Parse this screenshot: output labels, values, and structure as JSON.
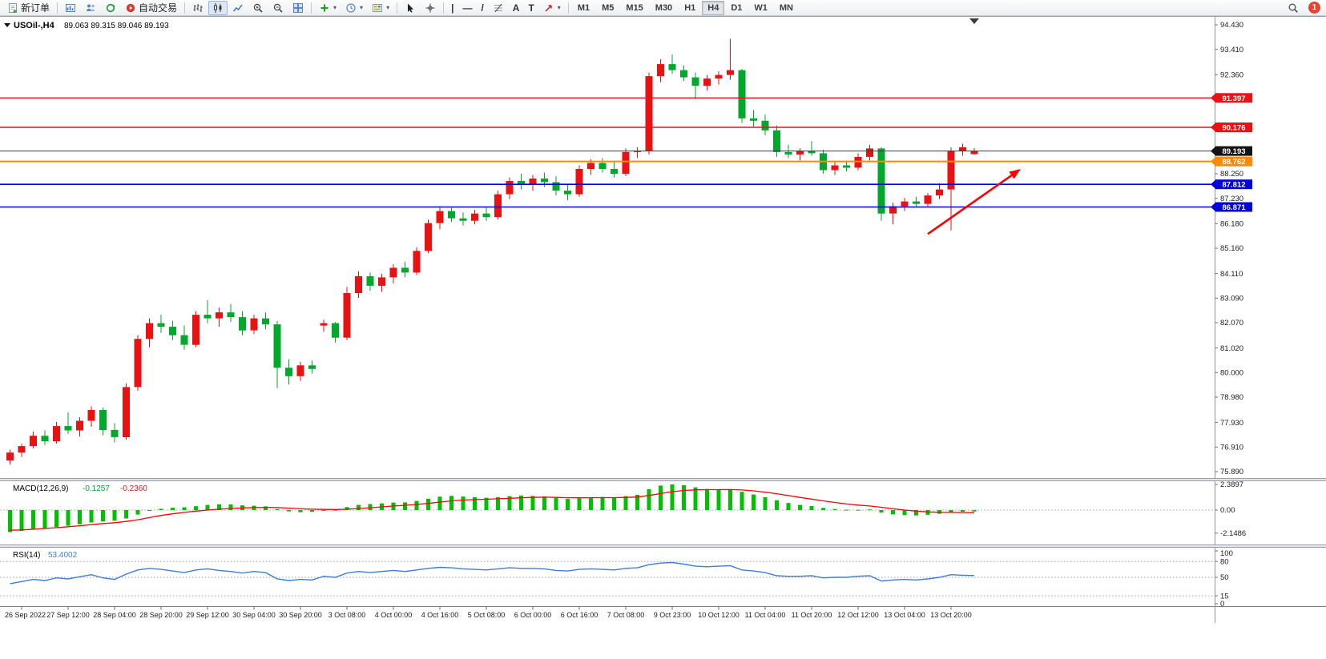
{
  "toolbar": {
    "new_order_label": "新订单",
    "autotrading_label": "自动交易",
    "timeframes": [
      "M1",
      "M5",
      "M15",
      "M30",
      "H1",
      "H4",
      "D1",
      "W1",
      "MN"
    ],
    "active_timeframe": "H4",
    "notification_count": "1",
    "glyphs": {
      "vline": "|",
      "hline": "—",
      "trendline": "/",
      "text": "A",
      "label": "T",
      "caret": "▾"
    }
  },
  "chart": {
    "title": "USOil-,H4",
    "ohlc_text": "89.063 89.315 89.046 89.193"
  },
  "indicators": {
    "macd": {
      "label": "MACD(12,26,9)",
      "value_main": "-0.1257",
      "value_signal": "-0.2360"
    },
    "rsi": {
      "label": "RSI(14)",
      "value": "53.4002"
    }
  },
  "chart_data": {
    "type": "candlestick",
    "symbol": "USOil-",
    "timeframe": "H4",
    "ylim": [
      75.89,
      94.43
    ],
    "current_ohlc": {
      "open": 89.063,
      "high": 89.315,
      "low": 89.046,
      "close": 89.193
    },
    "colors": {
      "up": "#e81212",
      "down": "#00a82c",
      "macd_bar": "#00c000",
      "macd_signal": "#ff0000",
      "rsi_line": "#3d7edb",
      "arrow": "#ff0000"
    },
    "price_axis": {
      "ticks": [
        "94.430",
        "93.410",
        "92.360",
        "88.250",
        "87.230",
        "86.180",
        "85.160",
        "84.110",
        "83.090",
        "82.070",
        "81.020",
        "80.000",
        "78.980",
        "77.930",
        "76.910",
        "75.890"
      ],
      "badges": [
        {
          "label": "91.397",
          "price": 91.397,
          "color": "#ee1111",
          "line_color": "#ee1111",
          "line_width": 1.4
        },
        {
          "label": "90.176",
          "price": 90.176,
          "color": "#ee1111",
          "line_color": "#ee1111",
          "line_width": 1.4
        },
        {
          "label": "89.193",
          "price": 89.193,
          "color": "#141414",
          "line_color": "#3c3c3c",
          "line_width": 1
        },
        {
          "label": "88.762",
          "price": 88.762,
          "color": "#ff8a00",
          "line_color": "#ff8a00",
          "line_width": 2
        },
        {
          "label": "87.812",
          "price": 87.812,
          "color": "#0000dc",
          "line_color": "#0000dc",
          "line_width": 1.6
        },
        {
          "label": "86.871",
          "price": 86.871,
          "color": "#0000dc",
          "line_color": "#0000dc",
          "line_width": 1.6
        }
      ]
    },
    "time_labels": [
      "26 Sep 2022",
      "27 Sep 12:00",
      "28 Sep 04:00",
      "28 Sep 20:00",
      "29 Sep 12:00",
      "30 Sep 04:00",
      "30 Sep 20:00",
      "3 Oct 08:00",
      "4 Oct 00:00",
      "4 Oct 16:00",
      "5 Oct 08:00",
      "6 Oct 00:00",
      "6 Oct 16:00",
      "7 Oct 08:00",
      "9 Oct 23:00",
      "10 Oct 12:00",
      "11 Oct 04:00",
      "11 Oct 20:00",
      "12 Oct 12:00",
      "13 Oct 04:00",
      "13 Oct 20:00"
    ],
    "candles": [
      [
        76.35,
        76.8,
        76.18,
        76.68
      ],
      [
        76.68,
        77.05,
        76.5,
        76.95
      ],
      [
        76.95,
        77.55,
        76.85,
        77.38
      ],
      [
        77.38,
        77.6,
        77.0,
        77.15
      ],
      [
        77.15,
        77.95,
        77.05,
        77.78
      ],
      [
        77.78,
        78.35,
        77.45,
        77.6
      ],
      [
        77.6,
        78.15,
        77.35,
        78.0
      ],
      [
        78.0,
        78.6,
        77.75,
        78.45
      ],
      [
        78.45,
        78.55,
        77.4,
        77.62
      ],
      [
        77.62,
        77.9,
        77.1,
        77.32
      ],
      [
        77.32,
        79.55,
        77.22,
        79.4
      ],
      [
        79.4,
        81.55,
        79.25,
        81.4
      ],
      [
        81.4,
        82.25,
        81.05,
        82.05
      ],
      [
        82.05,
        82.4,
        81.65,
        81.9
      ],
      [
        81.9,
        82.15,
        81.35,
        81.55
      ],
      [
        81.55,
        81.95,
        80.95,
        81.15
      ],
      [
        81.15,
        82.55,
        81.05,
        82.4
      ],
      [
        82.4,
        83.0,
        82.05,
        82.25
      ],
      [
        82.25,
        82.7,
        81.9,
        82.5
      ],
      [
        82.5,
        82.85,
        82.1,
        82.3
      ],
      [
        82.3,
        82.55,
        81.55,
        81.75
      ],
      [
        81.75,
        82.4,
        81.6,
        82.25
      ],
      [
        82.25,
        82.5,
        81.8,
        82.0
      ],
      [
        82.0,
        82.15,
        79.35,
        80.2
      ],
      [
        80.2,
        80.55,
        79.5,
        79.85
      ],
      [
        79.85,
        80.45,
        79.65,
        80.3
      ],
      [
        80.3,
        80.5,
        79.95,
        80.15
      ],
      [
        81.95,
        82.2,
        81.7,
        82.05
      ],
      [
        82.05,
        82.1,
        81.25,
        81.45
      ],
      [
        81.45,
        83.55,
        81.35,
        83.3
      ],
      [
        83.3,
        84.2,
        83.1,
        84.0
      ],
      [
        84.0,
        84.15,
        83.4,
        83.6
      ],
      [
        83.6,
        84.1,
        83.35,
        83.95
      ],
      [
        83.95,
        84.5,
        83.7,
        84.35
      ],
      [
        84.35,
        84.6,
        83.95,
        84.15
      ],
      [
        84.15,
        85.2,
        84.05,
        85.05
      ],
      [
        85.05,
        86.35,
        84.95,
        86.2
      ],
      [
        86.2,
        86.9,
        85.95,
        86.7
      ],
      [
        86.7,
        86.85,
        86.25,
        86.4
      ],
      [
        86.4,
        86.65,
        86.1,
        86.3
      ],
      [
        86.3,
        86.75,
        86.15,
        86.6
      ],
      [
        86.6,
        86.85,
        86.3,
        86.45
      ],
      [
        86.45,
        87.55,
        86.35,
        87.4
      ],
      [
        87.4,
        88.1,
        87.2,
        87.95
      ],
      [
        87.95,
        88.25,
        87.6,
        87.8
      ],
      [
        87.8,
        88.2,
        87.55,
        88.05
      ],
      [
        88.05,
        88.3,
        87.7,
        87.9
      ],
      [
        87.9,
        88.15,
        87.35,
        87.55
      ],
      [
        87.55,
        87.8,
        87.15,
        87.4
      ],
      [
        87.4,
        88.6,
        87.3,
        88.45
      ],
      [
        88.45,
        88.85,
        88.2,
        88.7
      ],
      [
        88.7,
        88.9,
        88.3,
        88.45
      ],
      [
        88.45,
        88.75,
        88.1,
        88.25
      ],
      [
        88.25,
        89.3,
        88.15,
        89.15
      ],
      [
        89.15,
        89.35,
        88.9,
        89.2
      ],
      [
        89.2,
        92.45,
        89.05,
        92.3
      ],
      [
        92.3,
        93.0,
        92.05,
        92.8
      ],
      [
        92.8,
        93.2,
        92.4,
        92.55
      ],
      [
        92.55,
        92.75,
        92.1,
        92.25
      ],
      [
        92.25,
        92.45,
        91.35,
        91.9
      ],
      [
        91.9,
        92.35,
        91.7,
        92.2
      ],
      [
        92.2,
        92.5,
        91.95,
        92.35
      ],
      [
        92.35,
        93.85,
        92.15,
        92.55
      ],
      [
        92.55,
        92.6,
        90.35,
        90.55
      ],
      [
        90.55,
        90.9,
        90.2,
        90.45
      ],
      [
        90.45,
        90.7,
        89.85,
        90.05
      ],
      [
        90.05,
        90.25,
        88.95,
        89.15
      ],
      [
        89.15,
        89.45,
        88.9,
        89.05
      ],
      [
        89.05,
        89.3,
        88.8,
        89.2
      ],
      [
        89.2,
        89.6,
        89.0,
        89.1
      ],
      [
        89.1,
        89.25,
        88.25,
        88.4
      ],
      [
        88.4,
        88.75,
        88.2,
        88.6
      ],
      [
        88.6,
        88.8,
        88.35,
        88.5
      ],
      [
        88.5,
        89.1,
        88.4,
        88.95
      ],
      [
        88.95,
        89.45,
        88.8,
        89.3
      ],
      [
        89.3,
        89.35,
        86.3,
        86.6
      ],
      [
        86.6,
        87.05,
        86.15,
        86.9
      ],
      [
        86.9,
        87.25,
        86.7,
        87.1
      ],
      [
        87.1,
        87.3,
        86.85,
        87.0
      ],
      [
        87.0,
        87.45,
        86.9,
        87.35
      ],
      [
        87.35,
        87.85,
        87.2,
        87.6
      ],
      [
        87.6,
        89.35,
        85.9,
        89.2
      ],
      [
        89.2,
        89.5,
        89.0,
        89.35
      ],
      [
        89.063,
        89.315,
        89.046,
        89.193
      ]
    ],
    "arrow": {
      "from_index": 79,
      "from_price": 85.75,
      "to_index": 87,
      "to_price": 88.45,
      "color": "#ff0000",
      "width": 2.6
    },
    "macd": {
      "scale": [
        {
          "label": "2.3897",
          "v": 2.3897
        },
        {
          "label": "0.00",
          "v": 0
        },
        {
          "label": "-2.1486",
          "v": -2.1486
        }
      ],
      "histogram": [
        -2.05,
        -1.95,
        -1.82,
        -1.72,
        -1.58,
        -1.46,
        -1.32,
        -1.16,
        -1.05,
        -1.0,
        -0.78,
        -0.42,
        -0.08,
        0.12,
        0.22,
        0.26,
        0.36,
        0.48,
        0.54,
        0.52,
        0.44,
        0.4,
        0.34,
        0.1,
        -0.12,
        -0.2,
        -0.16,
        -0.04,
        0.02,
        0.28,
        0.48,
        0.56,
        0.62,
        0.7,
        0.72,
        0.85,
        1.05,
        1.25,
        1.32,
        1.26,
        1.2,
        1.15,
        1.2,
        1.3,
        1.36,
        1.32,
        1.27,
        1.14,
        1.04,
        1.1,
        1.2,
        1.22,
        1.16,
        1.3,
        1.42,
        1.95,
        2.28,
        2.39,
        2.32,
        2.12,
        1.96,
        1.9,
        1.94,
        1.7,
        1.45,
        1.2,
        0.92,
        0.66,
        0.48,
        0.38,
        0.2,
        0.1,
        0.03,
        0.02,
        0.06,
        -0.24,
        -0.4,
        -0.47,
        -0.5,
        -0.44,
        -0.34,
        -0.2,
        -0.15,
        -0.1257
      ],
      "signal": [
        -1.88,
        -1.85,
        -1.79,
        -1.72,
        -1.64,
        -1.55,
        -1.46,
        -1.36,
        -1.26,
        -1.18,
        -1.06,
        -0.9,
        -0.7,
        -0.5,
        -0.35,
        -0.22,
        -0.1,
        0.0,
        0.08,
        0.15,
        0.2,
        0.23,
        0.25,
        0.23,
        0.18,
        0.12,
        0.08,
        0.06,
        0.05,
        0.08,
        0.14,
        0.22,
        0.3,
        0.38,
        0.44,
        0.52,
        0.62,
        0.75,
        0.86,
        0.93,
        0.98,
        1.01,
        1.05,
        1.1,
        1.14,
        1.18,
        1.2,
        1.18,
        1.15,
        1.14,
        1.15,
        1.16,
        1.16,
        1.18,
        1.22,
        1.36,
        1.54,
        1.71,
        1.83,
        1.88,
        1.9,
        1.9,
        1.91,
        1.87,
        1.79,
        1.67,
        1.52,
        1.35,
        1.18,
        1.02,
        0.86,
        0.71,
        0.57,
        0.46,
        0.38,
        0.26,
        0.12,
        0.0,
        -0.1,
        -0.17,
        -0.21,
        -0.22,
        -0.23,
        -0.236
      ]
    },
    "rsi": {
      "scale": [
        {
          "label": "100",
          "v": 100
        },
        {
          "label": "80",
          "v": 80
        },
        {
          "label": "50",
          "v": 50
        },
        {
          "label": "15",
          "v": 15
        },
        {
          "label": "0",
          "v": 0
        }
      ],
      "levels": [
        80,
        50,
        15
      ],
      "values": [
        38,
        42,
        46,
        44,
        49,
        47,
        51,
        55,
        49,
        46,
        56,
        64,
        67,
        65,
        62,
        59,
        64,
        66,
        63,
        61,
        58,
        61,
        59,
        47,
        44,
        46,
        45,
        52,
        50,
        58,
        61,
        59,
        61,
        63,
        61,
        64,
        67,
        69,
        68,
        66,
        65,
        64,
        66,
        68,
        67,
        67,
        66,
        63,
        62,
        65,
        66,
        65,
        64,
        67,
        68,
        74,
        77,
        78,
        75,
        71,
        70,
        71,
        72,
        64,
        62,
        59,
        53,
        52,
        52,
        53,
        49,
        50,
        50,
        52,
        53,
        43,
        45,
        46,
        45,
        47,
        50,
        55,
        54,
        53.4
      ]
    }
  }
}
